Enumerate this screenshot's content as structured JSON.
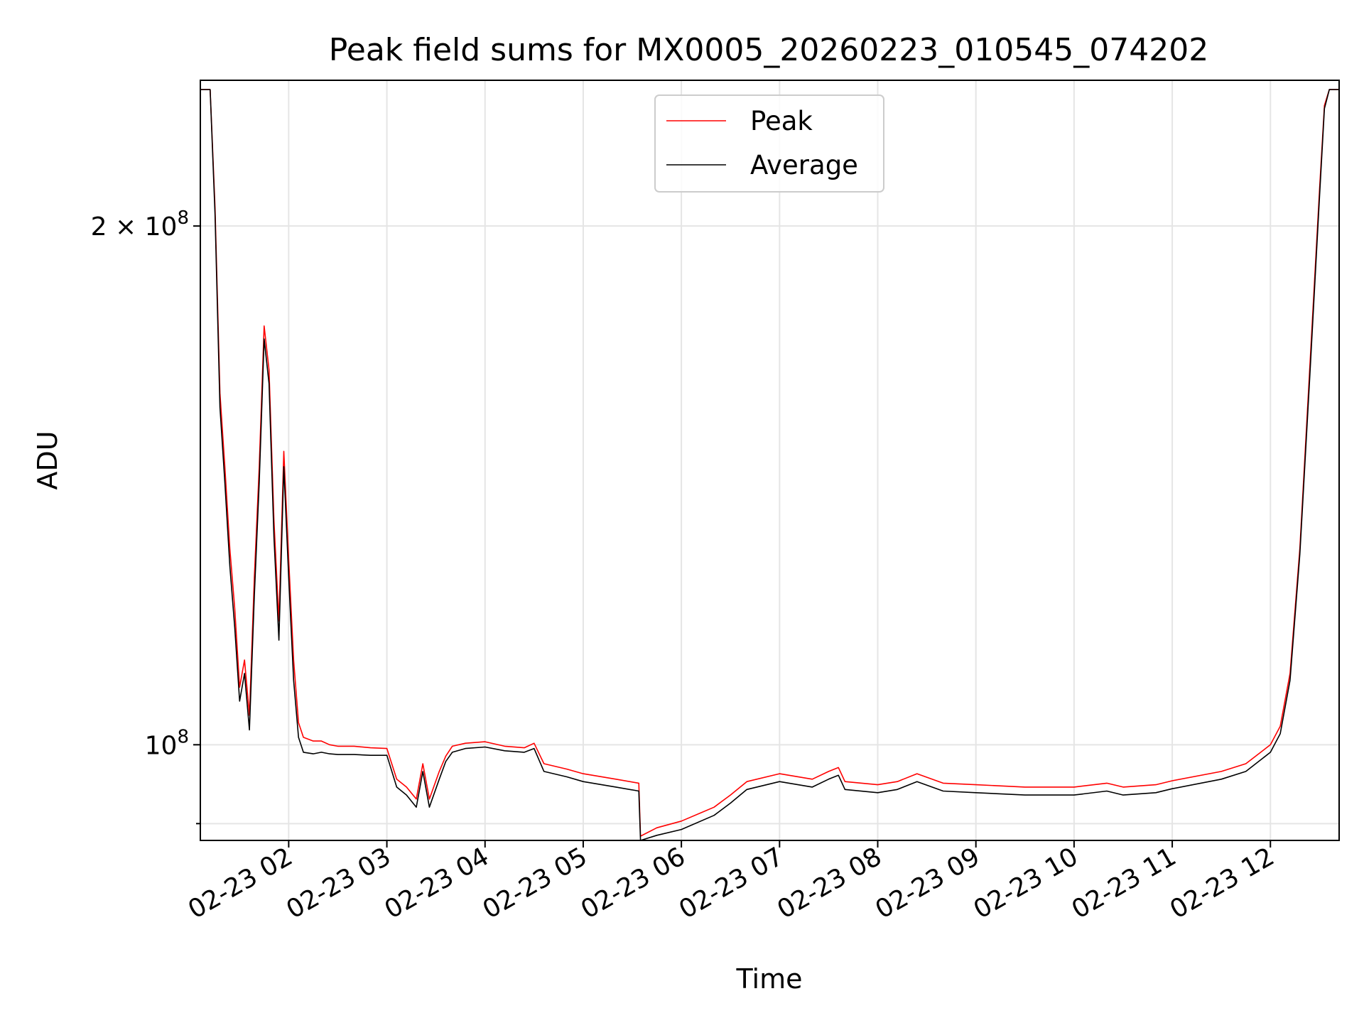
{
  "chart_data": {
    "type": "line",
    "title": "Peak field sums for MX0005_20260223_010545_074202",
    "xlabel": "Time",
    "ylabel": "ADU",
    "yscale": "log",
    "x_is_time": true,
    "xlim": [
      "2026-02-23 01:06",
      "2026-02-23 12:42"
    ],
    "ylim": [
      88000000,
      243000000
    ],
    "xticks": [
      {
        "label": "02-23 02",
        "time": "2026-02-23 02:00"
      },
      {
        "label": "02-23 03",
        "time": "2026-02-23 03:00"
      },
      {
        "label": "02-23 04",
        "time": "2026-02-23 04:00"
      },
      {
        "label": "02-23 05",
        "time": "2026-02-23 05:00"
      },
      {
        "label": "02-23 06",
        "time": "2026-02-23 06:00"
      },
      {
        "label": "02-23 07",
        "time": "2026-02-23 07:00"
      },
      {
        "label": "02-23 08",
        "time": "2026-02-23 08:00"
      },
      {
        "label": "02-23 09",
        "time": "2026-02-23 09:00"
      },
      {
        "label": "02-23 10",
        "time": "2026-02-23 10:00"
      },
      {
        "label": "02-23 11",
        "time": "2026-02-23 11:00"
      },
      {
        "label": "02-23 12",
        "time": "2026-02-23 12:00"
      }
    ],
    "yticks": [
      {
        "value": 100000000,
        "base": "10",
        "exp": "8"
      },
      {
        "value": 200000000,
        "prefix": "2 × ",
        "base": "10",
        "exp": "8"
      }
    ],
    "yminor_ticks": [
      90000000
    ],
    "grid": true,
    "legend_position": "upper center",
    "series": [
      {
        "name": "Peak",
        "color": "#ff0000",
        "x": [
          "2026-02-23 01:06",
          "2026-02-23 01:12",
          "2026-02-23 01:15",
          "2026-02-23 01:18",
          "2026-02-23 01:21",
          "2026-02-23 01:24",
          "2026-02-23 01:27",
          "2026-02-23 01:30",
          "2026-02-23 01:33",
          "2026-02-23 01:36",
          "2026-02-23 01:39",
          "2026-02-23 01:42",
          "2026-02-23 01:45",
          "2026-02-23 01:48",
          "2026-02-23 01:51",
          "2026-02-23 01:54",
          "2026-02-23 01:57",
          "2026-02-23 02:00",
          "2026-02-23 02:03",
          "2026-02-23 02:06",
          "2026-02-23 02:09",
          "2026-02-23 02:15",
          "2026-02-23 02:20",
          "2026-02-23 02:25",
          "2026-02-23 02:30",
          "2026-02-23 02:40",
          "2026-02-23 02:50",
          "2026-02-23 03:00",
          "2026-02-23 03:06",
          "2026-02-23 03:12",
          "2026-02-23 03:18",
          "2026-02-23 03:22",
          "2026-02-23 03:26",
          "2026-02-23 03:32",
          "2026-02-23 03:36",
          "2026-02-23 03:40",
          "2026-02-23 03:48",
          "2026-02-23 04:00",
          "2026-02-23 04:12",
          "2026-02-23 04:24",
          "2026-02-23 04:30",
          "2026-02-23 04:36",
          "2026-02-23 04:50",
          "2026-02-23 05:00",
          "2026-02-23 05:20",
          "2026-02-23 05:34",
          "2026-02-23 05:35",
          "2026-02-23 05:45",
          "2026-02-23 06:00",
          "2026-02-23 06:20",
          "2026-02-23 06:30",
          "2026-02-23 06:40",
          "2026-02-23 07:00",
          "2026-02-23 07:20",
          "2026-02-23 07:30",
          "2026-02-23 07:36",
          "2026-02-23 07:40",
          "2026-02-23 08:00",
          "2026-02-23 08:12",
          "2026-02-23 08:24",
          "2026-02-23 08:40",
          "2026-02-23 09:00",
          "2026-02-23 09:30",
          "2026-02-23 10:00",
          "2026-02-23 10:20",
          "2026-02-23 10:30",
          "2026-02-23 10:50",
          "2026-02-23 11:00",
          "2026-02-23 11:30",
          "2026-02-23 11:45",
          "2026-02-23 12:00",
          "2026-02-23 12:06",
          "2026-02-23 12:12",
          "2026-02-23 12:18",
          "2026-02-23 12:24",
          "2026-02-23 12:30",
          "2026-02-23 12:33",
          "2026-02-23 12:36",
          "2026-02-23 12:42"
        ],
        "values": [
          240000000,
          240000000,
          205000000,
          160000000,
          145000000,
          130000000,
          120000000,
          108000000,
          112000000,
          104000000,
          125000000,
          145000000,
          175000000,
          165000000,
          135000000,
          118000000,
          148000000,
          128000000,
          112000000,
          103000000,
          101000000,
          100500000,
          100500000,
          100000000,
          99800000,
          99800000,
          99600000,
          99500000,
          95500000,
          94500000,
          93000000,
          97500000,
          93000000,
          96500000,
          98500000,
          99800000,
          100200000,
          100400000,
          99800000,
          99600000,
          100200000,
          97500000,
          96800000,
          96200000,
          95500000,
          95000000,
          88500000,
          89500000,
          90300000,
          92000000,
          93500000,
          95200000,
          96200000,
          95500000,
          96500000,
          97000000,
          95200000,
          94800000,
          95200000,
          96200000,
          95000000,
          94800000,
          94500000,
          94500000,
          95000000,
          94500000,
          94800000,
          95300000,
          96500000,
          97500000,
          100000000,
          102500000,
          110000000,
          130000000,
          165000000,
          210000000,
          235000000,
          240000000,
          240000000
        ]
      },
      {
        "name": "Average",
        "color": "#000000",
        "x": [
          "2026-02-23 01:06",
          "2026-02-23 01:12",
          "2026-02-23 01:15",
          "2026-02-23 01:18",
          "2026-02-23 01:21",
          "2026-02-23 01:24",
          "2026-02-23 01:27",
          "2026-02-23 01:30",
          "2026-02-23 01:33",
          "2026-02-23 01:36",
          "2026-02-23 01:39",
          "2026-02-23 01:42",
          "2026-02-23 01:45",
          "2026-02-23 01:48",
          "2026-02-23 01:51",
          "2026-02-23 01:54",
          "2026-02-23 01:57",
          "2026-02-23 02:00",
          "2026-02-23 02:03",
          "2026-02-23 02:06",
          "2026-02-23 02:09",
          "2026-02-23 02:15",
          "2026-02-23 02:20",
          "2026-02-23 02:25",
          "2026-02-23 02:30",
          "2026-02-23 02:40",
          "2026-02-23 02:50",
          "2026-02-23 03:00",
          "2026-02-23 03:06",
          "2026-02-23 03:12",
          "2026-02-23 03:18",
          "2026-02-23 03:22",
          "2026-02-23 03:26",
          "2026-02-23 03:32",
          "2026-02-23 03:36",
          "2026-02-23 03:40",
          "2026-02-23 03:48",
          "2026-02-23 04:00",
          "2026-02-23 04:12",
          "2026-02-23 04:24",
          "2026-02-23 04:30",
          "2026-02-23 04:36",
          "2026-02-23 04:50",
          "2026-02-23 05:00",
          "2026-02-23 05:20",
          "2026-02-23 05:34",
          "2026-02-23 05:35",
          "2026-02-23 05:45",
          "2026-02-23 06:00",
          "2026-02-23 06:20",
          "2026-02-23 06:30",
          "2026-02-23 06:40",
          "2026-02-23 07:00",
          "2026-02-23 07:20",
          "2026-02-23 07:30",
          "2026-02-23 07:36",
          "2026-02-23 07:40",
          "2026-02-23 08:00",
          "2026-02-23 08:12",
          "2026-02-23 08:24",
          "2026-02-23 08:40",
          "2026-02-23 09:00",
          "2026-02-23 09:30",
          "2026-02-23 10:00",
          "2026-02-23 10:20",
          "2026-02-23 10:30",
          "2026-02-23 10:50",
          "2026-02-23 11:00",
          "2026-02-23 11:30",
          "2026-02-23 11:45",
          "2026-02-23 12:00",
          "2026-02-23 12:06",
          "2026-02-23 12:12",
          "2026-02-23 12:18",
          "2026-02-23 12:24",
          "2026-02-23 12:30",
          "2026-02-23 12:33",
          "2026-02-23 12:36",
          "2026-02-23 12:42"
        ],
        "values": [
          240000000,
          240000000,
          203000000,
          157000000,
          142000000,
          127000000,
          117000000,
          106000000,
          110000000,
          102000000,
          122000000,
          142000000,
          172000000,
          162000000,
          132000000,
          115000000,
          145000000,
          125000000,
          109000000,
          101000000,
          99000000,
          98800000,
          99000000,
          98800000,
          98700000,
          98700000,
          98600000,
          98600000,
          94500000,
          93500000,
          92000000,
          96500000,
          92000000,
          95500000,
          97800000,
          99000000,
          99500000,
          99700000,
          99200000,
          99000000,
          99500000,
          96500000,
          95800000,
          95200000,
          94500000,
          94000000,
          88000000,
          88600000,
          89300000,
          91000000,
          92500000,
          94200000,
          95200000,
          94500000,
          95500000,
          96000000,
          94200000,
          93800000,
          94200000,
          95200000,
          94000000,
          93800000,
          93500000,
          93500000,
          94000000,
          93500000,
          93800000,
          94300000,
          95500000,
          96500000,
          99000000,
          101500000,
          109000000,
          129000000,
          163000000,
          208000000,
          234000000,
          240000000,
          240000000
        ]
      }
    ]
  }
}
